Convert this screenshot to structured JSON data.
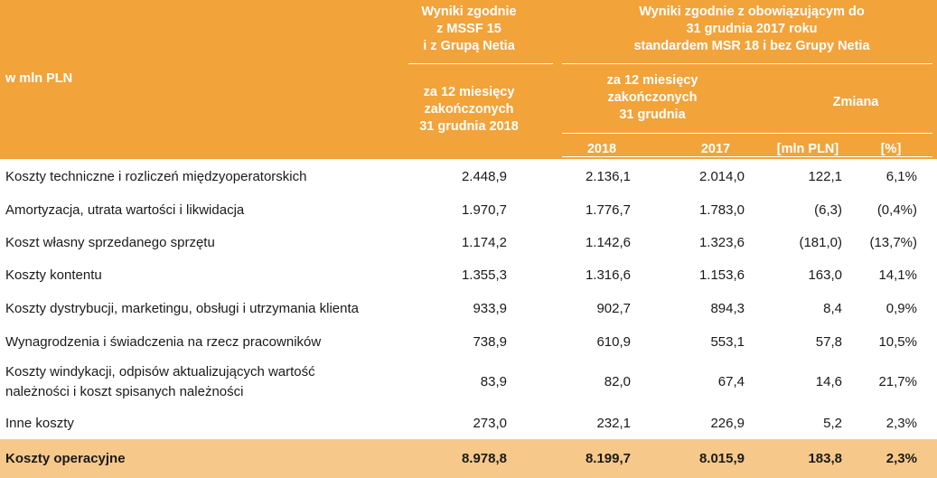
{
  "header": {
    "unit_label": "w mln PLN",
    "col_ifrs15": [
      "Wyniki zgodnie",
      "z MSSF 15",
      "i z Grupą Netia"
    ],
    "col_ifrs15_period": [
      "za 12 miesięcy",
      "zakończonych",
      "31 grudnia 2018"
    ],
    "col_ias18": [
      "Wyniki zgodnie z obowiązującym do",
      "31 grudnia 2017 roku",
      "standardem MSR 18 i bez Grupy Netia"
    ],
    "col_ias18_period": [
      "za 12 miesięcy",
      "zakończonych",
      "31 grudnia"
    ],
    "change_label": "Zmiana",
    "year_2018": "2018",
    "year_2017": "2017",
    "unit_mln": "[mln PLN]",
    "unit_pct": "[%]"
  },
  "colors": {
    "header_bg": "#f2a33a",
    "total_bg": "#f6c98a"
  },
  "rows": [
    {
      "label": [
        "Koszty techniczne i rozliczeń międzyoperatorskich"
      ],
      "v1": "2.448,9",
      "v2": "2.136,1",
      "v3": "2.014,0",
      "v4": "122,1",
      "v5": "6,1%"
    },
    {
      "label": [
        "Amortyzacja, utrata wartości i likwidacja"
      ],
      "v1": "1.970,7",
      "v2": "1.776,7",
      "v3": "1.783,0",
      "v4": "(6,3)",
      "v5": "(0,4%)"
    },
    {
      "label": [
        "Koszt własny sprzedanego sprzętu"
      ],
      "v1": "1.174,2",
      "v2": "1.142,6",
      "v3": "1.323,6",
      "v4": "(181,0)",
      "v5": "(13,7%)"
    },
    {
      "label": [
        "Koszty kontentu"
      ],
      "v1": "1.355,3",
      "v2": "1.316,6",
      "v3": "1.153,6",
      "v4": "163,0",
      "v5": "14,1%"
    },
    {
      "label": [
        "Koszty dystrybucji, marketingu, obsługi i utrzymania klienta"
      ],
      "v1": "933,9",
      "v2": "902,7",
      "v3": "894,3",
      "v4": "8,4",
      "v5": "0,9%"
    },
    {
      "label": [
        "Wynagrodzenia i świadczenia na rzecz pracowników"
      ],
      "v1": "738,9",
      "v2": "610,9",
      "v3": "553,1",
      "v4": "57,8",
      "v5": "10,5%"
    },
    {
      "label": [
        "Koszty windykacji, odpisów aktualizujących wartość",
        "należności i koszt spisanych należności"
      ],
      "v1": "83,9",
      "v2": "82,0",
      "v3": "67,4",
      "v4": "14,6",
      "v5": "21,7%"
    },
    {
      "label": [
        "Inne koszty"
      ],
      "v1": "273,0",
      "v2": "232,1",
      "v3": "226,9",
      "v4": "5,2",
      "v5": "2,3%"
    }
  ],
  "total": {
    "label": "Koszty operacyjne",
    "v1": "8.978,8",
    "v2": "8.199,7",
    "v3": "8.015,9",
    "v4": "183,8",
    "v5": "2,3%"
  }
}
